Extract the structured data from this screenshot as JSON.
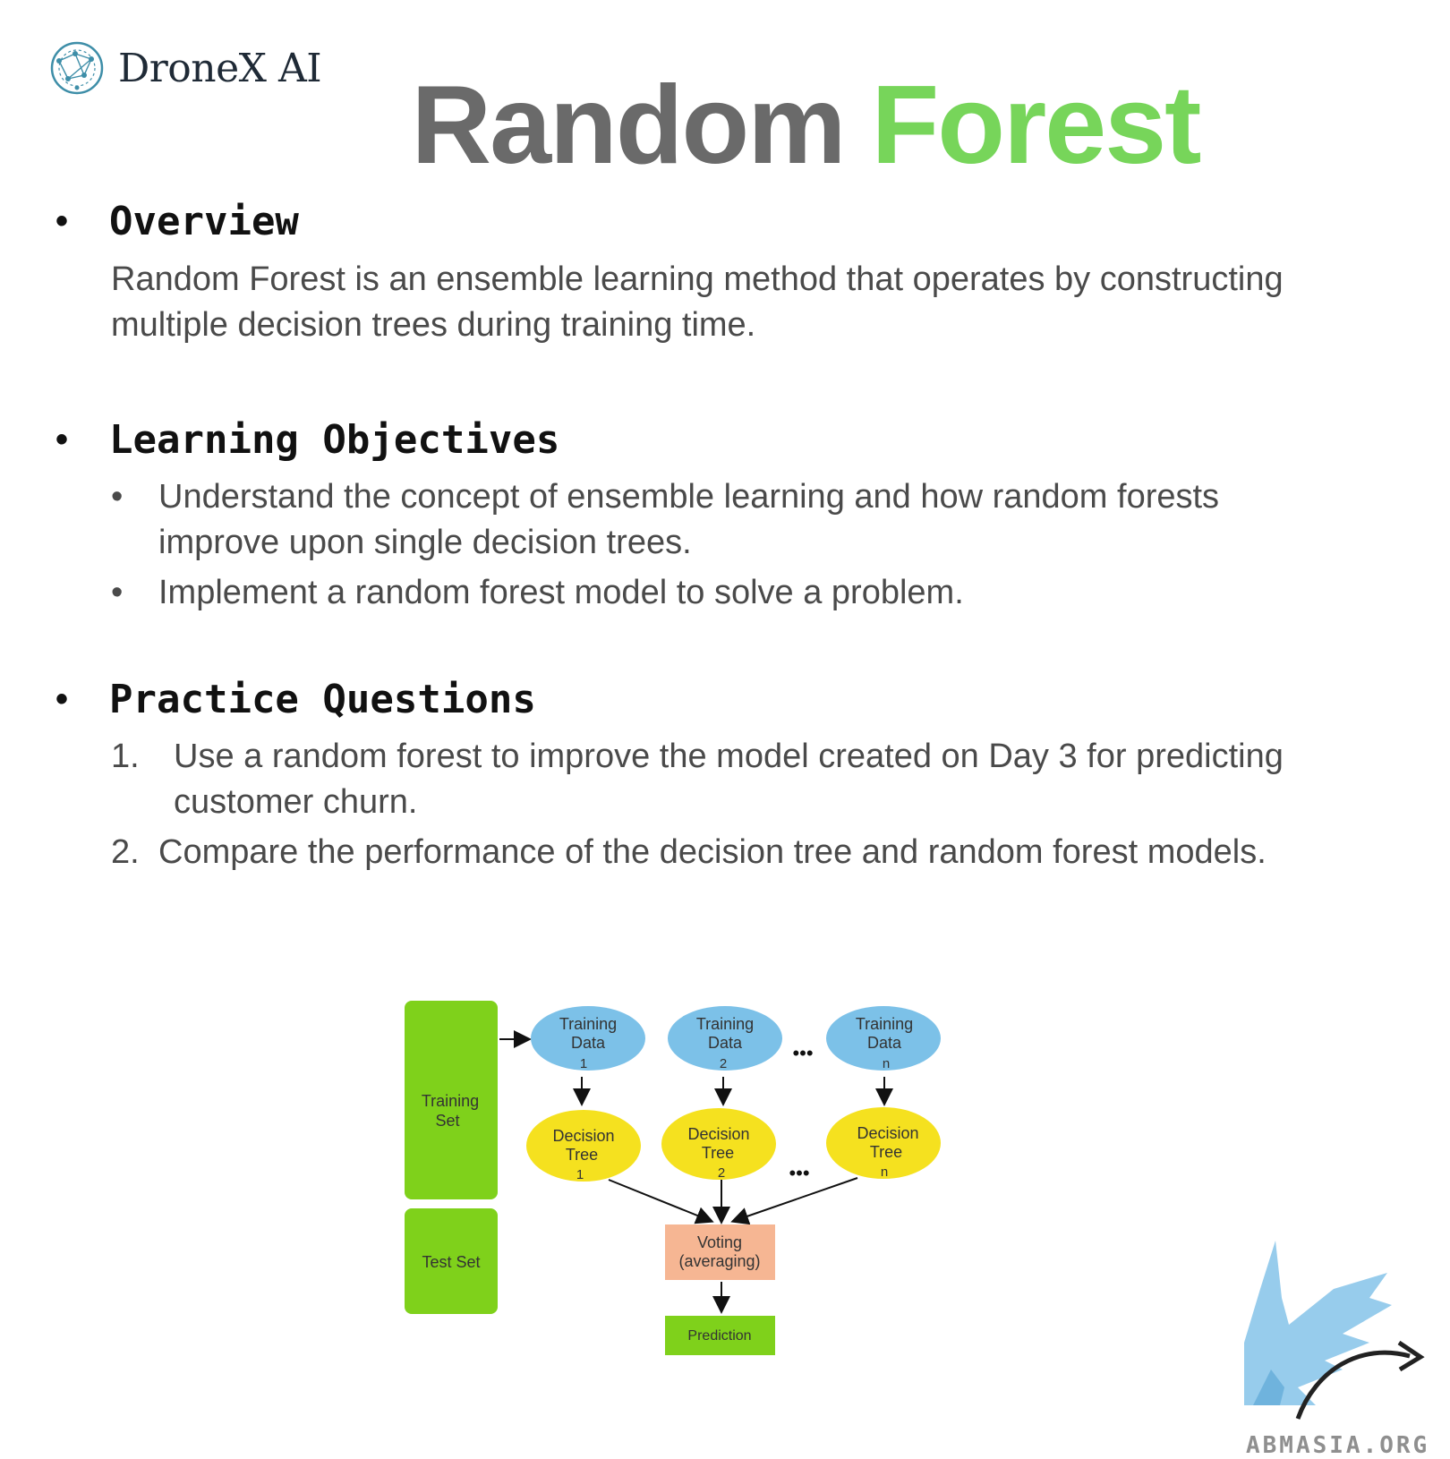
{
  "logo": {
    "text": "DroneX AI",
    "icon": "network-globe-icon"
  },
  "title": {
    "word1": "Random",
    "word2": "Forest",
    "color1": "#6a6a6a",
    "color2": "#77d55a"
  },
  "sections": {
    "overview": {
      "bullet": "•",
      "heading": "Overview",
      "lines": [
        "Random Forest is an ensemble learning method that operates by constructing",
        "multiple decision trees during training time."
      ]
    },
    "objectives": {
      "bullet": "•",
      "heading": "Learning Objectives",
      "items": [
        {
          "marker": "•",
          "lines": [
            "Understand the concept of ensemble learning and how random forests",
            "improve upon single decision trees."
          ]
        },
        {
          "marker": "•",
          "lines": [
            "Implement a random forest model to solve a problem."
          ]
        }
      ]
    },
    "practice": {
      "bullet": "•",
      "heading": "Practice Questions",
      "items": [
        {
          "marker": "1.",
          "lines": [
            "Use a random forest to improve the model created on Day 3 for predicting",
            "customer churn."
          ]
        },
        {
          "marker": "2.",
          "lines": [
            "Compare the performance of the decision tree and random forest models."
          ]
        }
      ]
    }
  },
  "diagram": {
    "training_set": [
      "Training",
      "Set"
    ],
    "test_set": "Test Set",
    "training_data": [
      {
        "l1": "Training",
        "l2": "Data",
        "l3": "1"
      },
      {
        "l1": "Training",
        "l2": "Data",
        "l3": "2"
      },
      {
        "l1": "Training",
        "l2": "Data",
        "l3": "n"
      }
    ],
    "decision_trees": [
      {
        "l1": "Decision",
        "l2": "Tree",
        "l3": "1"
      },
      {
        "l1": "Decision",
        "l2": "Tree",
        "l3": "2"
      },
      {
        "l1": "Decision",
        "l2": "Tree",
        "l3": "n"
      }
    ],
    "ellipsis": "•••",
    "voting": [
      "Voting",
      "(averaging)"
    ],
    "prediction": "Prediction",
    "colors": {
      "green": "#7fd11b",
      "blue": "#7cc1e8",
      "yellow": "#f5e11f",
      "salmon": "#f6b693"
    }
  },
  "watermark": {
    "text": "ABMASIA.ORG",
    "icon": "griffin-icon"
  }
}
